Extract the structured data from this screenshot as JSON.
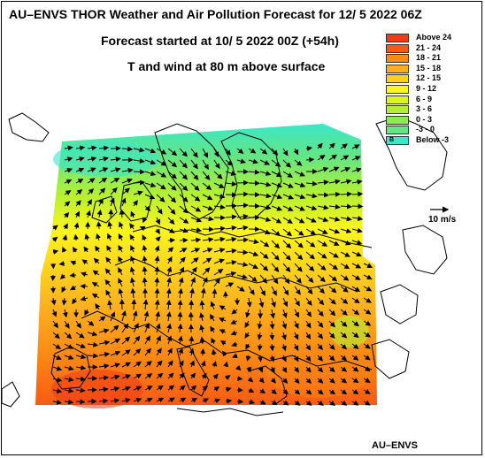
{
  "header": {
    "title": "AU–ENVS THOR Weather and Air Pollution Forecast for 12/ 5 2022  06Z",
    "subtitle_forecast": "Forecast started at 10/ 5 2022  00Z (+54h)",
    "subtitle_field": "T and wind at 80 m above surface"
  },
  "legend": {
    "items": [
      {
        "label": "Above   24",
        "color": "#f03c14"
      },
      {
        "label": "21 -  24",
        "color": "#f85a14"
      },
      {
        "label": "18 -  21",
        "color": "#fb8a14"
      },
      {
        "label": "15 -  18",
        "color": "#fcae1e"
      },
      {
        "label": "12 -  15",
        "color": "#fdd21e"
      },
      {
        "label": "9 -  12",
        "color": "#fdf51e"
      },
      {
        "label": "6 -   9",
        "color": "#dcf51e"
      },
      {
        "label": "3 -   6",
        "color": "#b4f032"
      },
      {
        "label": "0 -   3",
        "color": "#8ceb50"
      },
      {
        "label": "-3 -   0",
        "color": "#64e682"
      },
      {
        "label": "Below   -3",
        "color": "#3ce6c8",
        "marker": "B"
      }
    ]
  },
  "wind_reference": {
    "label": "10 m/s"
  },
  "credit": "AU–ENVS"
}
